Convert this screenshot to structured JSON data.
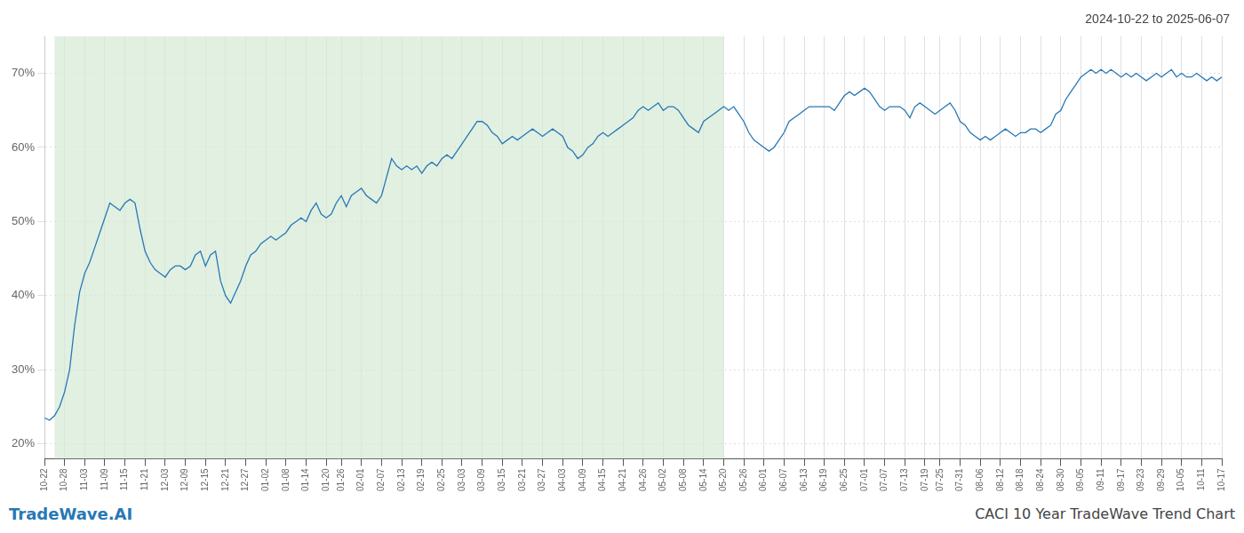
{
  "chart_data": {
    "type": "line",
    "title": "2024-10-22 to 2025-06-07",
    "annotations": [
      "TradeWave.AI",
      "CACI 10 Year TradeWave Trend Chart"
    ],
    "color": "#2778b5",
    "grid": true,
    "shade": {
      "start": 2,
      "end": 135,
      "color": "#d4ead4"
    },
    "ylim": [
      18,
      75
    ],
    "yticks": [
      {
        "value": 20,
        "label": "20%"
      },
      {
        "value": 30,
        "label": "30%"
      },
      {
        "value": 40,
        "label": "40%"
      },
      {
        "value": 50,
        "label": "50%"
      },
      {
        "value": 60,
        "label": "60%"
      },
      {
        "value": 70,
        "label": "70%"
      }
    ],
    "categories": [
      "10-22",
      null,
      null,
      null,
      "10-28",
      null,
      null,
      null,
      "11-03",
      null,
      null,
      null,
      "11-09",
      null,
      null,
      null,
      "11-15",
      null,
      null,
      null,
      "11-21",
      null,
      null,
      null,
      "12-03",
      null,
      null,
      null,
      "12-09",
      null,
      null,
      null,
      "12-15",
      null,
      null,
      null,
      "12-21",
      null,
      null,
      null,
      "12-27",
      null,
      null,
      null,
      "01-02",
      null,
      null,
      null,
      "01-08",
      null,
      null,
      null,
      "01-14",
      null,
      null,
      null,
      "01-20",
      null,
      null,
      "01-26",
      null,
      null,
      null,
      "02-01",
      null,
      null,
      null,
      "02-07",
      null,
      null,
      null,
      "02-13",
      null,
      null,
      null,
      "02-19",
      null,
      null,
      null,
      "02-25",
      null,
      null,
      null,
      "03-03",
      null,
      null,
      null,
      "03-09",
      null,
      null,
      null,
      "03-15",
      null,
      null,
      null,
      "03-21",
      null,
      null,
      null,
      "03-27",
      null,
      null,
      null,
      "04-03",
      null,
      null,
      null,
      "04-09",
      null,
      null,
      null,
      "04-15",
      null,
      null,
      null,
      "04-21",
      null,
      null,
      null,
      "04-26",
      null,
      null,
      null,
      "05-02",
      null,
      null,
      null,
      "05-08",
      null,
      null,
      null,
      "05-14",
      null,
      null,
      null,
      "05-20",
      null,
      null,
      null,
      "05-26",
      null,
      null,
      null,
      "06-01",
      null,
      null,
      null,
      "06-07",
      null,
      null,
      null,
      "06-13",
      null,
      null,
      null,
      "06-19",
      null,
      null,
      null,
      "06-25",
      null,
      null,
      null,
      "07-01",
      null,
      null,
      null,
      "07-07",
      null,
      null,
      null,
      "07-13",
      null,
      null,
      null,
      "07-19",
      null,
      null,
      "07-25",
      null,
      null,
      null,
      "07-31",
      null,
      null,
      null,
      "08-06",
      null,
      null,
      null,
      "08-12",
      null,
      null,
      null,
      "08-18",
      null,
      null,
      null,
      "08-24",
      null,
      null,
      null,
      "08-30",
      null,
      null,
      null,
      "09-05",
      null,
      null,
      null,
      "09-11",
      null,
      null,
      null,
      "09-17",
      null,
      null,
      null,
      "09-23",
      null,
      null,
      null,
      "09-29",
      null,
      null,
      null,
      "10-05",
      null,
      null,
      null,
      "10-11",
      null,
      null,
      null,
      "10-17"
    ],
    "values": [
      23.5,
      23.2,
      23.8,
      25.0,
      27.0,
      30.0,
      36.0,
      40.5,
      43.0,
      44.5,
      46.5,
      48.5,
      50.5,
      52.5,
      52.0,
      51.5,
      52.5,
      53.0,
      52.5,
      49.0,
      46.0,
      44.5,
      43.5,
      43.0,
      42.5,
      43.5,
      44.0,
      44.0,
      43.5,
      44.0,
      45.5,
      46.0,
      44.0,
      45.5,
      46.0,
      42.0,
      40.0,
      39.0,
      40.5,
      42.0,
      44.0,
      45.5,
      46.0,
      47.0,
      47.5,
      48.0,
      47.5,
      48.0,
      48.5,
      49.5,
      50.0,
      50.5,
      50.0,
      51.5,
      52.5,
      51.0,
      50.5,
      51.0,
      52.5,
      53.5,
      52.0,
      53.5,
      54.0,
      54.5,
      53.5,
      53.0,
      52.5,
      53.5,
      56.0,
      58.5,
      57.5,
      57.0,
      57.5,
      57.0,
      57.5,
      56.5,
      57.5,
      58.0,
      57.5,
      58.5,
      59.0,
      58.5,
      59.5,
      60.5,
      61.5,
      62.5,
      63.5,
      63.5,
      63.0,
      62.0,
      61.5,
      60.5,
      61.0,
      61.5,
      61.0,
      61.5,
      62.0,
      62.5,
      62.0,
      61.5,
      62.0,
      62.5,
      62.0,
      61.5,
      60.0,
      59.5,
      58.5,
      59.0,
      60.0,
      60.5,
      61.5,
      62.0,
      61.5,
      62.0,
      62.5,
      63.0,
      63.5,
      64.0,
      65.0,
      65.5,
      65.0,
      65.5,
      66.0,
      65.0,
      65.5,
      65.5,
      65.0,
      64.0,
      63.0,
      62.5,
      62.0,
      63.5,
      64.0,
      64.5,
      65.0,
      65.5,
      65.0,
      65.5,
      64.5,
      63.5,
      62.0,
      61.0,
      60.5,
      60.0,
      59.5,
      60.0,
      61.0,
      62.0,
      63.5,
      64.0,
      64.5,
      65.0,
      65.5,
      65.5,
      65.5,
      65.5,
      65.5,
      65.0,
      66.0,
      67.0,
      67.5,
      67.0,
      67.5,
      68.0,
      67.5,
      66.5,
      65.5,
      65.0,
      65.5,
      65.5,
      65.5,
      65.0,
      64.0,
      65.5,
      66.0,
      65.5,
      65.0,
      64.5,
      65.0,
      65.5,
      66.0,
      65.0,
      63.5,
      63.0,
      62.0,
      61.5,
      61.0,
      61.5,
      61.0,
      61.5,
      62.0,
      62.5,
      62.0,
      61.5,
      62.0,
      62.0,
      62.5,
      62.5,
      62.0,
      62.5,
      63.0,
      64.5,
      65.0,
      66.5,
      67.5,
      68.5,
      69.5,
      70.0,
      70.5,
      70.0,
      70.5,
      70.0,
      70.5,
      70.0,
      69.5,
      70.0,
      69.5,
      70.0,
      69.5,
      69.0,
      69.5,
      70.0,
      69.5,
      70.0,
      70.5,
      69.5,
      70.0,
      69.5,
      69.5,
      70.0,
      69.5,
      69.0,
      69.5,
      69.0,
      69.5
    ]
  }
}
